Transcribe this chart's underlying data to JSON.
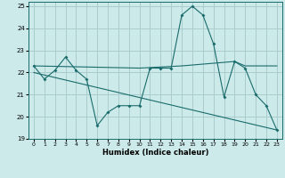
{
  "xlabel": "Humidex (Indice chaleur)",
  "ylabel": "",
  "bg_color": "#cceaea",
  "grid_color": "#aacccc",
  "line_color": "#1a6b6b",
  "xlim": [
    -0.5,
    23.5
  ],
  "ylim": [
    19,
    25.2
  ],
  "yticks": [
    19,
    20,
    21,
    22,
    23,
    24,
    25
  ],
  "xticks": [
    0,
    1,
    2,
    3,
    4,
    5,
    6,
    7,
    8,
    9,
    10,
    11,
    12,
    13,
    14,
    15,
    16,
    17,
    18,
    19,
    20,
    21,
    22,
    23
  ],
  "curve1_x": [
    0,
    1,
    2,
    3,
    4,
    5,
    6,
    7,
    8,
    9,
    10,
    11,
    12,
    13,
    14,
    15,
    16,
    17,
    18,
    19,
    20,
    21,
    22,
    23
  ],
  "curve1_y": [
    22.3,
    21.7,
    22.1,
    22.7,
    22.1,
    21.7,
    19.6,
    20.2,
    20.5,
    20.5,
    20.5,
    22.2,
    22.2,
    22.2,
    24.6,
    25.0,
    24.6,
    23.3,
    20.9,
    22.5,
    22.2,
    21.0,
    20.5,
    19.4
  ],
  "curve2_x": [
    0,
    10,
    14,
    19,
    20,
    23
  ],
  "curve2_y": [
    22.3,
    22.2,
    22.3,
    22.5,
    22.3,
    22.3
  ],
  "curve3_x": [
    0,
    23
  ],
  "curve3_y": [
    22.0,
    19.4
  ]
}
